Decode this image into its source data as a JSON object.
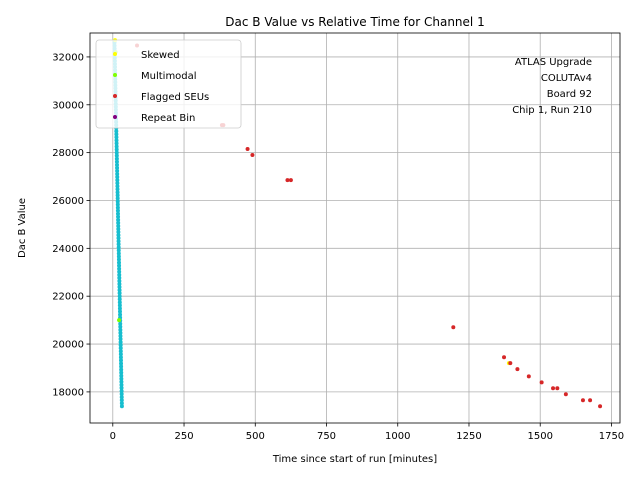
{
  "chart_data": {
    "type": "scatter",
    "title": "Dac B Value vs Relative Time for Channel 1",
    "xlabel": "Time since start of run [minutes]",
    "ylabel": "Dac B Value",
    "xlim": [
      -80,
      1780
    ],
    "ylim": [
      16700,
      33000
    ],
    "xticks": [
      0,
      250,
      500,
      750,
      1000,
      1250,
      1500,
      1750
    ],
    "yticks": [
      18000,
      20000,
      22000,
      24000,
      26000,
      28000,
      30000,
      32000
    ],
    "grid": true,
    "legend_position": "top-left",
    "annotation": [
      "ATLAS Upgrade",
      "COLUTAv4",
      "Board 92",
      "Chip 1, Run 210"
    ],
    "main_series_color": "#17becf",
    "main_series_x_range": [
      6,
      32
    ],
    "main_series_y_range": [
      17400,
      32600
    ],
    "main_series_count": 120,
    "series": [
      {
        "name": "Skewed",
        "color": "#ffff00",
        "points": [
          [
            8,
            32700
          ],
          [
            1390,
            19200
          ]
        ]
      },
      {
        "name": "Multimodal",
        "color": "#7fff00",
        "points": [
          [
            10,
            32200
          ],
          [
            22,
            21000
          ]
        ]
      },
      {
        "name": "Flagged SEUs",
        "color": "#d62728",
        "points": [
          [
            85,
            32480
          ],
          [
            383,
            29150
          ],
          [
            388,
            29150
          ],
          [
            473,
            28150
          ],
          [
            490,
            27900
          ],
          [
            613,
            26850
          ],
          [
            625,
            26850
          ],
          [
            1195,
            20700
          ],
          [
            1373,
            19450
          ],
          [
            1395,
            19200
          ],
          [
            1420,
            18950
          ],
          [
            1460,
            18650
          ],
          [
            1505,
            18400
          ],
          [
            1545,
            18150
          ],
          [
            1560,
            18150
          ],
          [
            1590,
            17900
          ],
          [
            1650,
            17650
          ],
          [
            1675,
            17650
          ],
          [
            1710,
            17400
          ]
        ]
      },
      {
        "name": "Repeat Bin",
        "color": "#800080",
        "points": []
      }
    ]
  }
}
